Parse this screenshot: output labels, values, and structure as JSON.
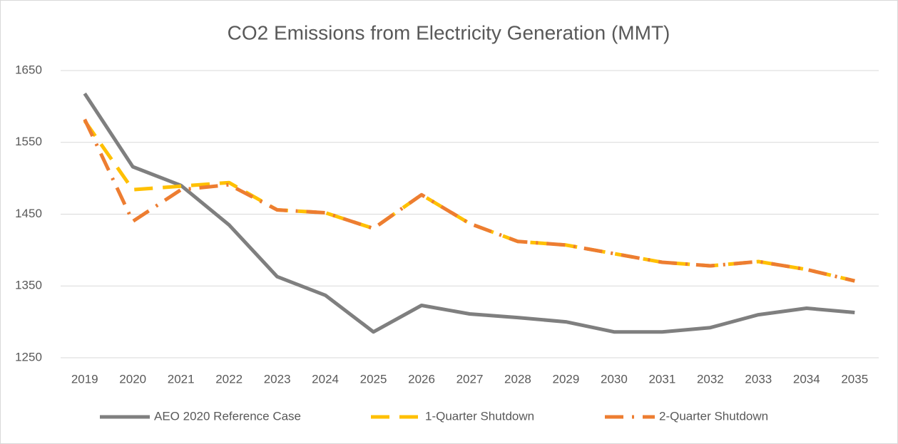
{
  "chart_data": {
    "type": "line",
    "title": "CO2 Emissions from Electricity Generation (MMT)",
    "categories": [
      "2019",
      "2020",
      "2021",
      "2022",
      "2023",
      "2024",
      "2025",
      "2026",
      "2027",
      "2028",
      "2029",
      "2030",
      "2031",
      "2032",
      "2033",
      "2034",
      "2035"
    ],
    "series": [
      {
        "name": "AEO 2020 Reference Case",
        "color": "#7f7f7f",
        "dash": "solid",
        "values": [
          1618,
          1516,
          1490,
          1435,
          1363,
          1337,
          1286,
          1323,
          1311,
          1306,
          1300,
          1286,
          1286,
          1292,
          1310,
          1319,
          1313
        ]
      },
      {
        "name": "1-Quarter Shutdown",
        "color": "#ffc000",
        "dash": "dash",
        "values": [
          1580,
          1484,
          1489,
          1494,
          1456,
          1452,
          1430,
          1477,
          1437,
          1412,
          1407,
          1395,
          1383,
          1378,
          1384,
          1373,
          1357
        ]
      },
      {
        "name": "2-Quarter Shutdown",
        "color": "#ed7d31",
        "dash": "dashdot",
        "values": [
          1582,
          1440,
          1484,
          1491,
          1456,
          1452,
          1430,
          1477,
          1437,
          1412,
          1407,
          1395,
          1383,
          1378,
          1384,
          1373,
          1357
        ]
      }
    ],
    "ylim": [
      1250,
      1650
    ],
    "yticks": [
      1250,
      1350,
      1450,
      1550,
      1650
    ],
    "grid": true,
    "legend": "bottom"
  }
}
